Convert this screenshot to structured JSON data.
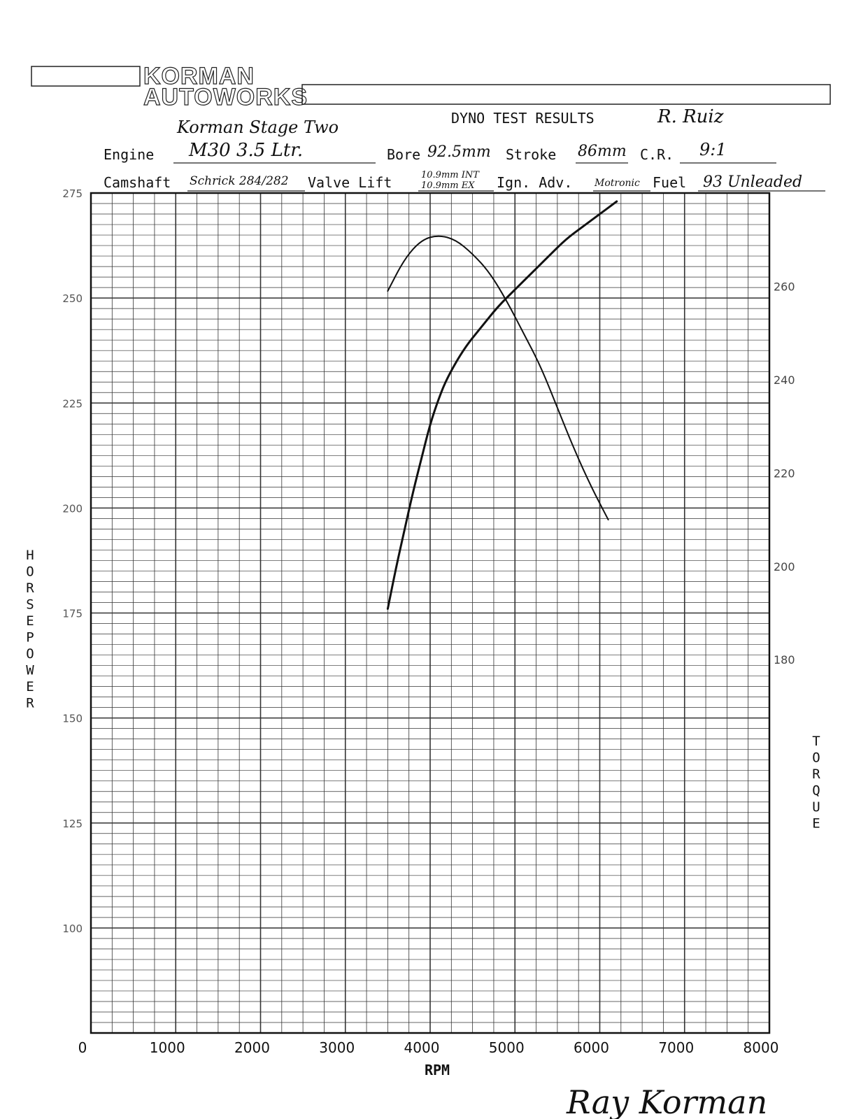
{
  "header": {
    "logo_line1": "KORMAN",
    "logo_line2": "AUTOWORKS",
    "title": "DYNO TEST RESULTS",
    "customer": "R. Ruiz",
    "package": "Korman Stage Two"
  },
  "specs": {
    "engine_label": "Engine",
    "engine_value": "M30  3.5 Ltr.",
    "bore_label": "Bore",
    "bore_value": "92.5mm",
    "stroke_label": "Stroke",
    "stroke_value": "86mm",
    "cr_label": "C.R.",
    "cr_value": "9:1",
    "camshaft_label": "Camshaft",
    "camshaft_value": "Schrick 284/282",
    "valve_lift_label": "Valve Lift",
    "valve_lift_int": "10.9mm INT",
    "valve_lift_ex": "10.9mm EX",
    "ign_label": "Ign. Adv.",
    "ign_value": "Motronic",
    "fuel_label": "Fuel",
    "fuel_value": "93 Unleaded"
  },
  "signature": "Ray Korman",
  "chart_data": {
    "type": "line",
    "xlabel": "RPM",
    "ylabel": "HORSEPOWER",
    "y2label": "TORQUE",
    "xlim": [
      0,
      8000
    ],
    "ylim": [
      75,
      275
    ],
    "x_ticks": [
      "0",
      "1000",
      "2000",
      "3000",
      "4000",
      "5000",
      "6000",
      "7000",
      "8000"
    ],
    "y_ticks": [
      275,
      250,
      225,
      200,
      175,
      150,
      125,
      100
    ],
    "y2_ticks": [
      260,
      240,
      220,
      200,
      180
    ],
    "y2_range": [
      100,
      280
    ],
    "grid": true,
    "series": [
      {
        "axis": "left",
        "x": [
          3500,
          3600,
          3700,
          3800,
          3900,
          4000,
          4100,
          4200,
          4400,
          4600,
          4800,
          5000,
          5200,
          5400,
          5600,
          5800,
          6000,
          6200
        ],
        "values": [
          176,
          186,
          195,
          204,
          212,
          220,
          226,
          231,
          238,
          243,
          248,
          252,
          256,
          260,
          264,
          267,
          270,
          273
        ]
      },
      {
        "axis": "right",
        "x": [
          3500,
          3700,
          3900,
          4100,
          4300,
          4500,
          4700,
          4900,
          5100,
          5300,
          5500,
          5700,
          5900,
          6100
        ],
        "values": [
          259,
          266,
          270,
          271,
          270,
          267,
          263,
          257,
          250,
          243,
          234,
          225,
          217,
          210
        ]
      }
    ]
  }
}
